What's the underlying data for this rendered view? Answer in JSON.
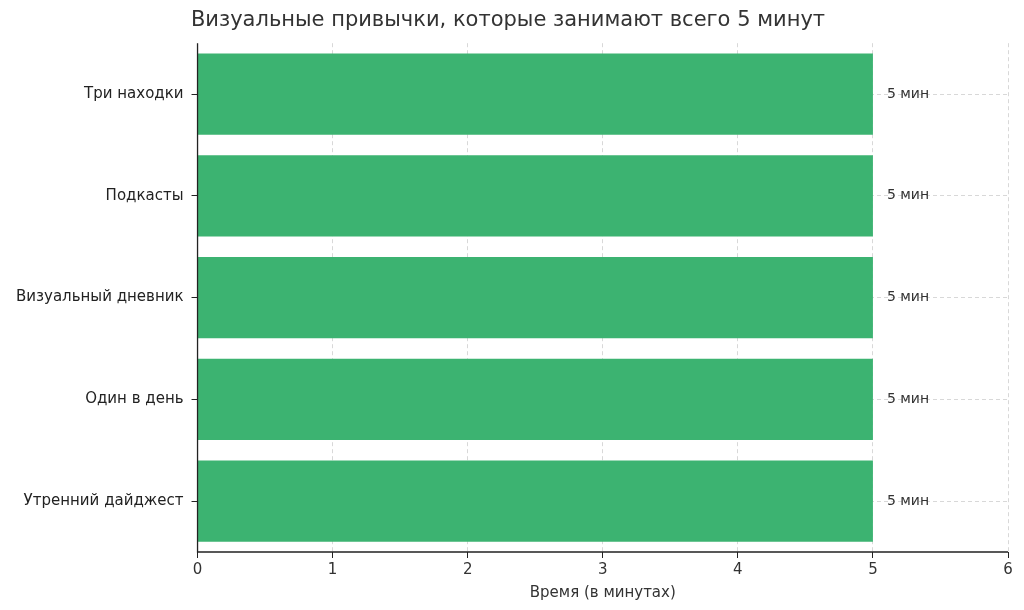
{
  "chart_data": {
    "type": "bar",
    "orientation": "horizontal",
    "title": "Визуальные привычки, которые занимают всего 5 минут",
    "xlabel": "Время (в минутах)",
    "categories": [
      "Три находки",
      "Подкасты",
      "Визуальный дневник",
      "Один в день",
      "Утренний дайджест"
    ],
    "values": [
      5,
      5,
      5,
      5,
      5
    ],
    "color": "#3cb371",
    "value_labels": [
      "5 мин",
      "5 мин",
      "5 мин",
      "5 мин",
      "5 мин"
    ],
    "xlim": [
      0,
      6
    ],
    "xticks": [
      0,
      1,
      2,
      3,
      4,
      5,
      6
    ],
    "grid": true,
    "legend": false
  }
}
